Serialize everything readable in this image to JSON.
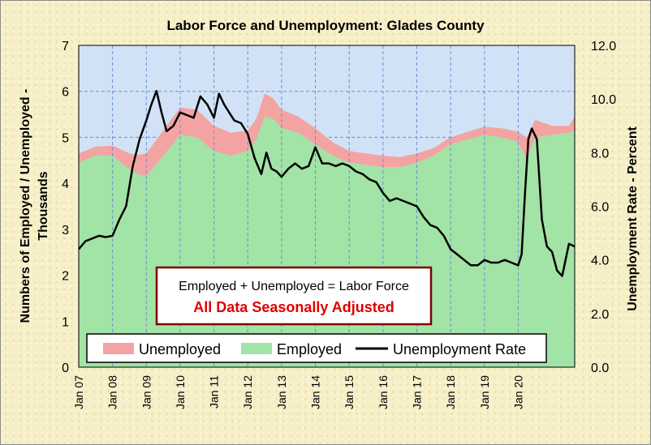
{
  "chart_data": {
    "type": "area",
    "title": "Labor Force and Unemployment: Glades County",
    "ylabel_left_line1": "Numbers of Employed / Unemployed -",
    "ylabel_left_line2": "Thousands",
    "ylabel_right": "Unemployment Rate - Percent",
    "ylim_left": [
      0,
      7
    ],
    "ylim_right": [
      0,
      12
    ],
    "yticks_left": [
      "0",
      "1",
      "2",
      "3",
      "4",
      "5",
      "6",
      "7"
    ],
    "yticks_right": [
      "0.0",
      "2.0",
      "4.0",
      "6.0",
      "8.0",
      "10.0",
      "12.0"
    ],
    "x_categories": [
      "Jan 07",
      "Jan 08",
      "Jan 09",
      "Jan 10",
      "Jan 11",
      "Jan 12",
      "Jan 13",
      "Jan 14",
      "Jan 15",
      "Jan 16",
      "Jan 17",
      "Jan 18",
      "Jan 19",
      "Jan 20"
    ],
    "x_range_years": [
      2007.0,
      2021.67
    ],
    "grid": true,
    "note_line1": "Employed + Unemployed = Labor Force",
    "note_line2": "All Data Seasonally Adjusted",
    "legend_position": "bottom-center",
    "colors": {
      "unemployed": "#f4a3a3",
      "employed": "#a2e3a6",
      "rate": "#000000",
      "plot_bg": "#d2e2f6",
      "note_border": "#7a0000",
      "note_red": "#e00000"
    },
    "series": [
      {
        "name": "Employed",
        "type": "area",
        "axis": "left",
        "x": [
          2007.0,
          2007.5,
          2008.0,
          2008.5,
          2008.75,
          2009.0,
          2009.5,
          2010.0,
          2010.5,
          2011.0,
          2011.5,
          2012.0,
          2012.25,
          2012.5,
          2012.75,
          2013.0,
          2013.5,
          2014.0,
          2014.5,
          2015.0,
          2015.5,
          2016.0,
          2016.5,
          2017.0,
          2017.5,
          2018.0,
          2018.5,
          2019.0,
          2019.5,
          2020.0,
          2020.25,
          2020.5,
          2021.0,
          2021.5,
          2021.67
        ],
        "values": [
          4.45,
          4.6,
          4.6,
          4.3,
          4.2,
          4.15,
          4.6,
          5.05,
          5.0,
          4.7,
          4.6,
          4.7,
          4.95,
          5.45,
          5.4,
          5.2,
          5.1,
          4.85,
          4.6,
          4.45,
          4.4,
          4.35,
          4.35,
          4.45,
          4.6,
          4.85,
          4.95,
          5.05,
          5.0,
          4.9,
          4.5,
          5.0,
          5.05,
          5.1,
          5.15
        ]
      },
      {
        "name": "Unemployed",
        "type": "stacked-area",
        "axis": "left",
        "x": [
          2007.0,
          2007.5,
          2008.0,
          2008.5,
          2008.75,
          2009.0,
          2009.5,
          2010.0,
          2010.5,
          2011.0,
          2011.5,
          2012.0,
          2012.25,
          2012.5,
          2012.75,
          2013.0,
          2013.5,
          2014.0,
          2014.5,
          2015.0,
          2015.5,
          2016.0,
          2016.5,
          2017.0,
          2017.5,
          2018.0,
          2018.5,
          2019.0,
          2019.5,
          2020.0,
          2020.25,
          2020.5,
          2021.0,
          2021.5,
          2021.67
        ],
        "values": [
          0.2,
          0.2,
          0.22,
          0.35,
          0.42,
          0.5,
          0.55,
          0.6,
          0.6,
          0.55,
          0.5,
          0.45,
          0.45,
          0.5,
          0.45,
          0.4,
          0.35,
          0.35,
          0.3,
          0.25,
          0.25,
          0.25,
          0.22,
          0.2,
          0.17,
          0.15,
          0.17,
          0.18,
          0.2,
          0.22,
          0.5,
          0.38,
          0.2,
          0.15,
          0.3
        ]
      },
      {
        "name": "Unemployment Rate",
        "type": "line",
        "axis": "right",
        "x": [
          2007.0,
          2007.2,
          2007.4,
          2007.6,
          2007.8,
          2008.0,
          2008.2,
          2008.4,
          2008.6,
          2008.8,
          2009.0,
          2009.15,
          2009.3,
          2009.45,
          2009.6,
          2009.8,
          2010.0,
          2010.2,
          2010.4,
          2010.6,
          2010.8,
          2011.0,
          2011.15,
          2011.3,
          2011.45,
          2011.6,
          2011.8,
          2012.0,
          2012.2,
          2012.4,
          2012.55,
          2012.7,
          2012.85,
          2013.0,
          2013.2,
          2013.4,
          2013.6,
          2013.8,
          2014.0,
          2014.2,
          2014.4,
          2014.6,
          2014.8,
          2015.0,
          2015.2,
          2015.4,
          2015.6,
          2015.8,
          2016.0,
          2016.2,
          2016.4,
          2016.6,
          2016.8,
          2017.0,
          2017.2,
          2017.4,
          2017.6,
          2017.8,
          2018.0,
          2018.2,
          2018.4,
          2018.6,
          2018.8,
          2019.0,
          2019.2,
          2019.4,
          2019.6,
          2019.8,
          2020.0,
          2020.1,
          2020.2,
          2020.3,
          2020.4,
          2020.55,
          2020.7,
          2020.85,
          2021.0,
          2021.15,
          2021.3,
          2021.5,
          2021.67
        ],
        "values": [
          4.4,
          4.7,
          4.8,
          4.9,
          4.85,
          4.9,
          5.5,
          6.0,
          7.5,
          8.5,
          9.2,
          9.8,
          10.3,
          9.5,
          8.8,
          9.0,
          9.5,
          9.4,
          9.3,
          10.1,
          9.8,
          9.3,
          10.2,
          9.8,
          9.5,
          9.2,
          9.1,
          8.7,
          7.8,
          7.2,
          8.0,
          7.4,
          7.3,
          7.1,
          7.4,
          7.6,
          7.4,
          7.5,
          8.2,
          7.6,
          7.6,
          7.5,
          7.6,
          7.5,
          7.3,
          7.2,
          7.0,
          6.9,
          6.5,
          6.2,
          6.3,
          6.2,
          6.1,
          6.0,
          5.6,
          5.3,
          5.2,
          4.9,
          4.4,
          4.2,
          4.0,
          3.8,
          3.8,
          4.0,
          3.9,
          3.9,
          4.0,
          3.9,
          3.8,
          4.2,
          6.5,
          8.5,
          8.9,
          8.5,
          5.5,
          4.5,
          4.3,
          3.6,
          3.4,
          4.6,
          4.5
        ]
      }
    ]
  }
}
